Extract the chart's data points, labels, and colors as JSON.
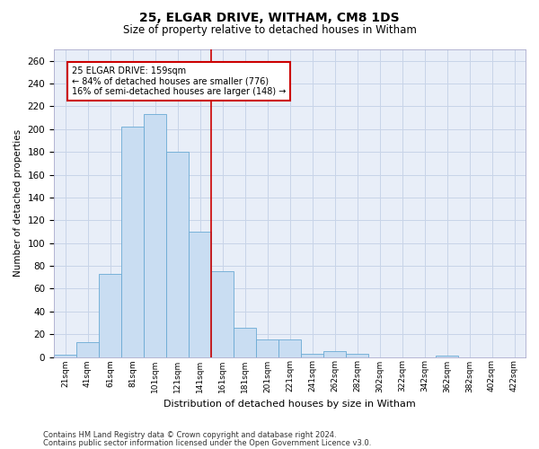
{
  "title": "25, ELGAR DRIVE, WITHAM, CM8 1DS",
  "subtitle": "Size of property relative to detached houses in Witham",
  "xlabel": "Distribution of detached houses by size in Witham",
  "ylabel": "Number of detached properties",
  "categories": [
    "21sqm",
    "41sqm",
    "61sqm",
    "81sqm",
    "101sqm",
    "121sqm",
    "141sqm",
    "161sqm",
    "181sqm",
    "201sqm",
    "221sqm",
    "241sqm",
    "262sqm",
    "282sqm",
    "302sqm",
    "322sqm",
    "342sqm",
    "362sqm",
    "382sqm",
    "402sqm",
    "422sqm"
  ],
  "values": [
    2,
    13,
    73,
    202,
    213,
    180,
    110,
    75,
    26,
    15,
    15,
    3,
    5,
    3,
    0,
    0,
    0,
    1,
    0,
    0,
    0
  ],
  "bar_color": "#c9ddf2",
  "bar_edge_color": "#6aaad4",
  "grid_color": "#c8d4e8",
  "background_color": "#e8eef8",
  "annotation_text_line1": "25 ELGAR DRIVE: 159sqm",
  "annotation_text_line2": "← 84% of detached houses are smaller (776)",
  "annotation_text_line3": "16% of semi-detached houses are larger (148) →",
  "annotation_box_color": "#ffffff",
  "annotation_box_edge_color": "#cc0000",
  "vline_color": "#cc0000",
  "ylim": [
    0,
    270
  ],
  "yticks": [
    0,
    20,
    40,
    60,
    80,
    100,
    120,
    140,
    160,
    180,
    200,
    220,
    240,
    260
  ],
  "footnote1": "Contains HM Land Registry data © Crown copyright and database right 2024.",
  "footnote2": "Contains public sector information licensed under the Open Government Licence v3.0."
}
